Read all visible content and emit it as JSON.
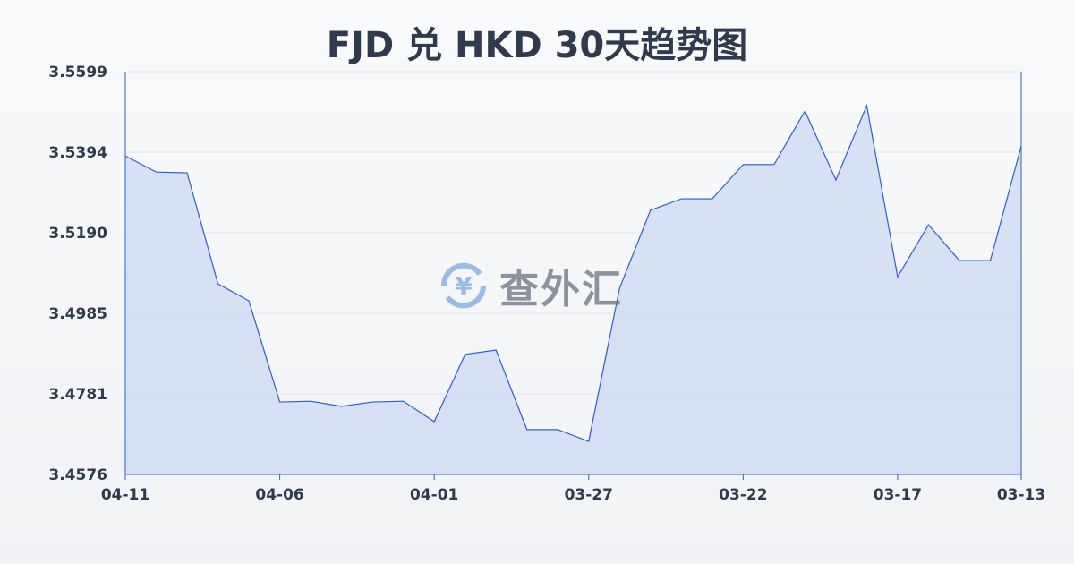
{
  "chart_data": {
    "type": "area",
    "title": "FJD 兑 HKD 30天趋势图",
    "xlabel": "",
    "ylabel": "",
    "x": [
      "04-11",
      "04-10",
      "04-09",
      "04-08",
      "04-07",
      "04-06",
      "04-05",
      "04-04",
      "04-03",
      "04-02",
      "04-01",
      "03-31",
      "03-30",
      "03-29",
      "03-28",
      "03-27",
      "03-26",
      "03-25",
      "03-24",
      "03-23",
      "03-22",
      "03-21",
      "03-20",
      "03-19",
      "03-18",
      "03-17",
      "03-16",
      "03-15",
      "03-14",
      "03-13"
    ],
    "values": [
      3.5385,
      3.5344,
      3.5342,
      3.506,
      3.5017,
      3.476,
      3.4762,
      3.4749,
      3.476,
      3.4762,
      3.471,
      3.4881,
      3.4892,
      3.469,
      3.469,
      3.466,
      3.5049,
      3.5247,
      3.5276,
      3.5276,
      3.5363,
      3.5363,
      3.5499,
      3.5324,
      3.5513,
      3.5078,
      3.521,
      3.5119,
      3.5119,
      3.541
    ],
    "x_tick_labels": [
      "04-11",
      "04-06",
      "04-01",
      "03-27",
      "03-22",
      "03-17",
      "03-13"
    ],
    "y_tick_labels": [
      "3.5599",
      "3.5394",
      "3.5190",
      "3.4985",
      "3.4781",
      "3.4576"
    ],
    "ylim": [
      3.4576,
      3.5599
    ],
    "grid": true,
    "colors": {
      "line": "#2e5fc9",
      "fill": "#c9d7f3",
      "grid": "#e3e6eb",
      "text": "#2f3a4c"
    }
  },
  "watermark": {
    "text": "查外汇",
    "icon": "yen-exchange-icon"
  }
}
